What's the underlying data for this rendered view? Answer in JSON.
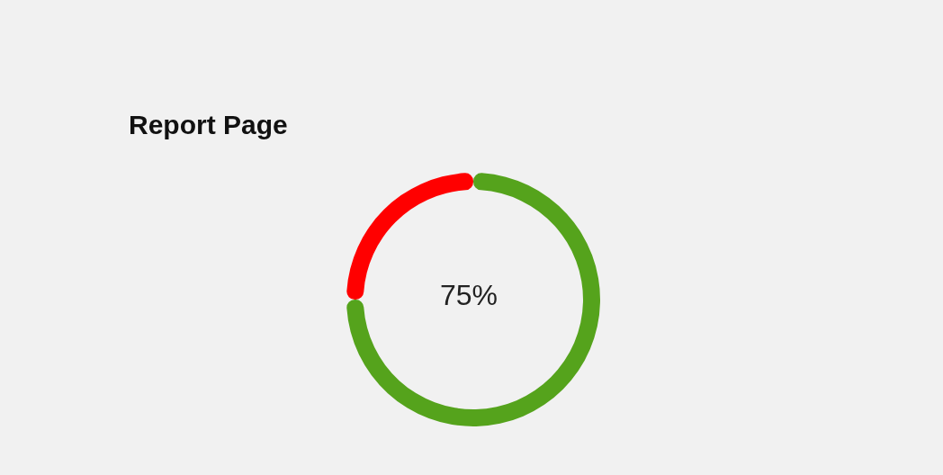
{
  "chart_data": {
    "type": "donut",
    "title": "Report Page",
    "categories": [
      null,
      null
    ],
    "values": [
      75,
      25
    ],
    "colors": [
      "#55a31c",
      "#ff0000"
    ],
    "annotations": [
      "75%"
    ]
  }
}
